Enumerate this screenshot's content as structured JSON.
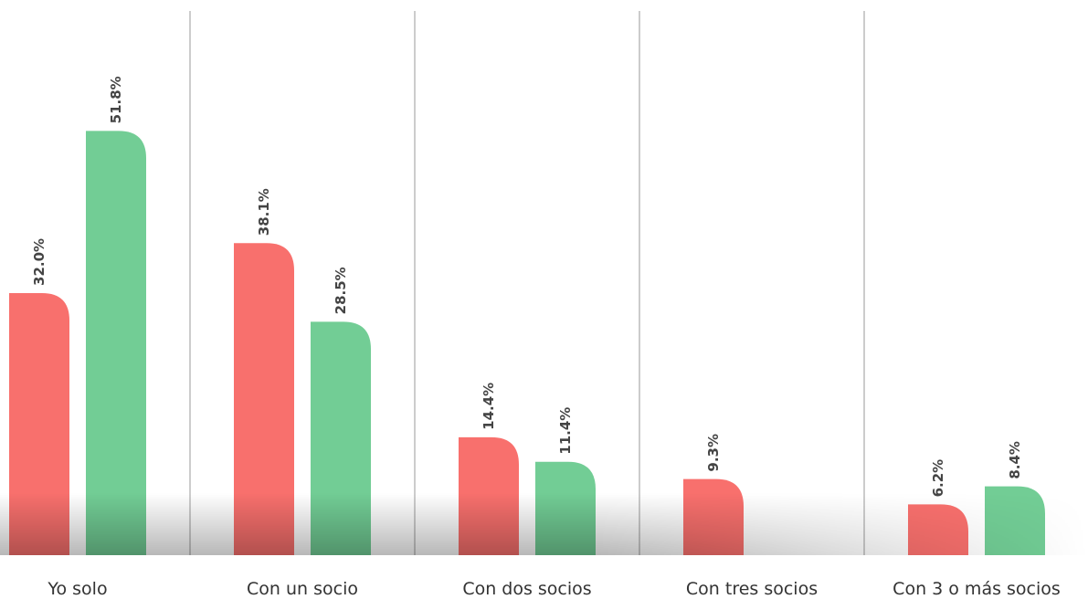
{
  "chart_data": {
    "type": "bar",
    "categories": [
      "Yo solo",
      "Con un socio",
      "Con dos socios",
      "Con tres socios",
      "Con 3 o más socios"
    ],
    "series": [
      {
        "color": "#f8706d",
        "values": [
          32.0,
          38.1,
          14.4,
          9.3,
          6.2
        ],
        "labels": [
          "32.0%",
          "38.1%",
          "14.4%",
          "9.3%",
          "6.2%"
        ]
      },
      {
        "color": "#72cd95",
        "values": [
          51.8,
          28.5,
          11.4,
          null,
          8.4
        ],
        "labels": [
          "51.8%",
          "28.5%",
          "11.4%",
          "",
          "8.4%"
        ]
      }
    ],
    "ylim": [
      0,
      60
    ],
    "grid": false,
    "legend": "none"
  }
}
